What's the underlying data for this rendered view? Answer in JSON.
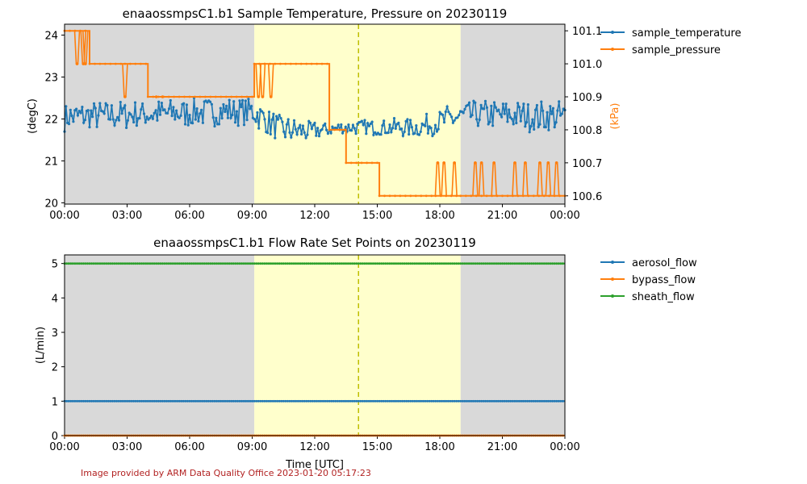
{
  "footer": {
    "credit": "Image provided by ARM Data Quality Office 2023-01-20 05:17:23",
    "credit_color": "#b22222"
  },
  "colors": {
    "night_shade": "#d9d9d9",
    "day_shade": "#ffffcc",
    "noon_line": "#bfbf00",
    "series1": "#1f77b4",
    "series2": "#ff7f0e",
    "series3": "#2ca02c"
  },
  "shading": {
    "night_before_end_hours": 9.1,
    "day_start_hours": 9.1,
    "day_end_hours": 19.0,
    "noon_hours": 14.1
  },
  "chart_data": [
    {
      "type": "line",
      "title": "enaaossmpsC1.b1 Sample Temperature, Pressure on 20230119",
      "xlabel": "",
      "ylabel": "(degC)",
      "y2label": "(kPa)",
      "xlim": [
        0,
        24
      ],
      "x_tick_labels": [
        "00:00",
        "03:00",
        "06:00",
        "09:00",
        "12:00",
        "15:00",
        "18:00",
        "21:00",
        "00:00"
      ],
      "ylim": [
        19.97,
        24.26
      ],
      "y_ticks": [
        20,
        21,
        22,
        23,
        24
      ],
      "y2lim": [
        100.575,
        101.12
      ],
      "y2_ticks": [
        "100.6",
        "100.7",
        "100.8",
        "100.9",
        "101.0",
        "101.1"
      ],
      "legend_position": "outside-right",
      "series": [
        {
          "name": "sample_temperature",
          "axis": "left",
          "style": "noisy",
          "baseline": [
            [
              0,
              22.05
            ],
            [
              9.0,
              22.2
            ],
            [
              10.3,
              21.75
            ],
            [
              11.8,
              21.7
            ],
            [
              13.5,
              21.8
            ],
            [
              15.0,
              21.8
            ],
            [
              17.0,
              21.8
            ],
            [
              18.5,
              22.0
            ],
            [
              19.5,
              22.1
            ],
            [
              24,
              22.05
            ]
          ],
          "amplitude": [
            [
              0,
              0.35
            ],
            [
              9.0,
              0.35
            ],
            [
              10.5,
              0.35
            ],
            [
              13.0,
              0.15
            ],
            [
              15.0,
              0.2
            ],
            [
              17.0,
              0.25
            ],
            [
              18.5,
              0.35
            ],
            [
              24,
              0.4
            ]
          ],
          "range": [
            21.2,
            22.9
          ]
        },
        {
          "name": "sample_pressure",
          "axis": "right",
          "style": "stepped",
          "segments": [
            [
              0.0,
              1.2,
              101.1
            ],
            [
              1.2,
              2.9,
              101.0
            ],
            [
              2.9,
              4.0,
              101.0
            ],
            [
              4.0,
              9.1,
              100.9
            ],
            [
              9.1,
              9.6,
              101.0
            ],
            [
              9.6,
              12.7,
              101.0
            ],
            [
              12.7,
              13.5,
              100.8
            ],
            [
              13.5,
              15.1,
              100.7
            ],
            [
              15.1,
              17.8,
              100.6
            ],
            [
              17.8,
              19.0,
              100.6
            ],
            [
              19.0,
              24.0,
              100.6
            ]
          ],
          "toggles": [
            [
              0.6,
              101.0
            ],
            [
              0.9,
              101.0
            ],
            [
              1.0,
              101.0
            ],
            [
              2.9,
              100.9
            ],
            [
              4.4,
              100.9
            ],
            [
              4.7,
              100.9
            ],
            [
              9.3,
              100.9
            ],
            [
              9.5,
              100.9
            ],
            [
              9.9,
              100.9
            ],
            [
              17.9,
              100.7
            ],
            [
              18.2,
              100.7
            ],
            [
              18.7,
              100.7
            ],
            [
              19.7,
              100.7
            ],
            [
              20.0,
              100.7
            ],
            [
              20.6,
              100.7
            ],
            [
              21.6,
              100.7
            ],
            [
              22.1,
              100.7
            ],
            [
              22.8,
              100.7
            ],
            [
              23.2,
              100.7
            ],
            [
              23.6,
              100.7
            ]
          ]
        }
      ]
    },
    {
      "type": "line",
      "title": "enaaossmpsC1.b1 Flow Rate Set Points on 20230119",
      "xlabel": "Time [UTC]",
      "ylabel": "(L/min)",
      "xlim": [
        0,
        24
      ],
      "x_tick_labels": [
        "00:00",
        "03:00",
        "06:00",
        "09:00",
        "12:00",
        "15:00",
        "18:00",
        "21:00",
        "00:00"
      ],
      "ylim": [
        0,
        5.25
      ],
      "y_ticks": [
        0,
        1,
        2,
        3,
        4,
        5
      ],
      "legend_position": "outside-right",
      "series": [
        {
          "name": "aerosol_flow",
          "values_constant": 1.0
        },
        {
          "name": "bypass_flow",
          "values_constant": 0.0
        },
        {
          "name": "sheath_flow",
          "values_constant": 5.0
        }
      ]
    }
  ]
}
